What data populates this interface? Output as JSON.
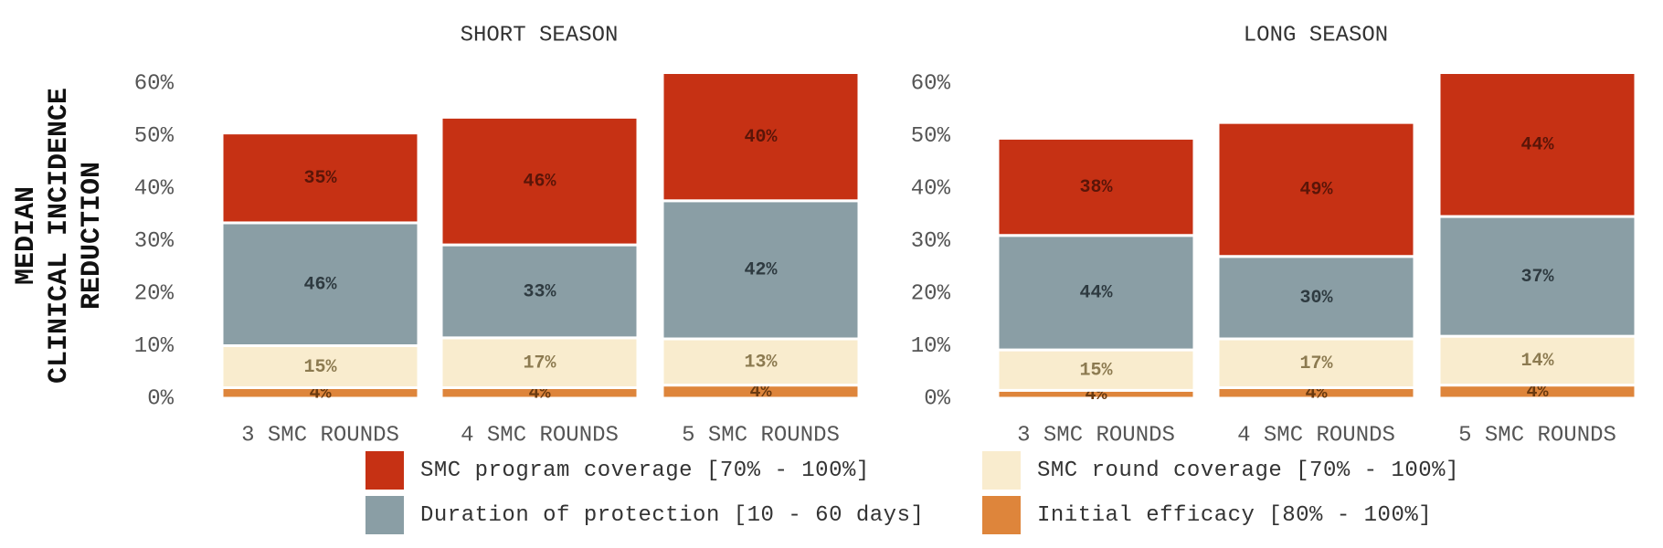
{
  "y_axis_title_lines": [
    "MEDIAN",
    "CLINICAL INCIDENCE",
    "REDUCTION"
  ],
  "colors": {
    "program": "#c63114",
    "duration": "#8a9ea5",
    "round": "#f9ecce",
    "efficacy": "#de853b",
    "segment_text_dark": "#5a1508",
    "segment_text_slate": "#2e3a40",
    "segment_text_round": "#8c7a50",
    "segment_text_efficacy": "#6a3a10"
  },
  "legend": [
    {
      "label": "SMC program coverage [70% - 100%]",
      "color": "#c63114"
    },
    {
      "label": "SMC round coverage [70% - 100%]",
      "color": "#f9ecce"
    },
    {
      "label": "Duration of protection [10 - 60 days]",
      "color": "#8a9ea5"
    },
    {
      "label": "Initial efficacy [80% - 100%]",
      "color": "#de853b"
    }
  ],
  "chart_data": [
    {
      "type": "bar",
      "stacked": true,
      "title": "SHORT SEASON",
      "ylabel": "MEDIAN CLINICAL INCIDENCE REDUCTION",
      "ylim": [
        0,
        62
      ],
      "yticks": [
        "0%",
        "10%",
        "20%",
        "30%",
        "40%",
        "50%",
        "60%"
      ],
      "categories": [
        "3 SMC ROUNDS",
        "4 SMC ROUNDS",
        "5 SMC ROUNDS"
      ],
      "totals": [
        50.5,
        53.5,
        62
      ],
      "series": [
        {
          "name": "Initial efficacy [80% - 100%]",
          "share_labels": [
            "4%",
            "4%",
            "4%"
          ],
          "values": [
            2,
            2,
            2.5
          ]
        },
        {
          "name": "SMC round coverage [70% - 100%]",
          "share_labels": [
            "15%",
            "17%",
            "13%"
          ],
          "values": [
            8,
            9.5,
            8.8
          ]
        },
        {
          "name": "Duration of protection [10 - 60 days]",
          "share_labels": [
            "46%",
            "33%",
            "42%"
          ],
          "values": [
            23.4,
            17.7,
            26.3
          ]
        },
        {
          "name": "SMC program coverage [70% - 100%]",
          "share_labels": [
            "35%",
            "46%",
            "40%"
          ],
          "values": [
            17.1,
            24.3,
            24.4
          ]
        }
      ]
    },
    {
      "type": "bar",
      "stacked": true,
      "title": "LONG SEASON",
      "ylim": [
        0,
        62
      ],
      "yticks": [
        "0%",
        "10%",
        "20%",
        "30%",
        "40%",
        "50%",
        "60%"
      ],
      "categories": [
        "3 SMC ROUNDS",
        "4 SMC ROUNDS",
        "5 SMC ROUNDS"
      ],
      "totals": [
        49.5,
        52.5,
        62
      ],
      "series": [
        {
          "name": "Initial efficacy [80% - 100%]",
          "share_labels": [
            "4%",
            "4%",
            "4%"
          ],
          "values": [
            1.5,
            2,
            2.5
          ]
        },
        {
          "name": "SMC round coverage [70% - 100%]",
          "share_labels": [
            "15%",
            "17%",
            "14%"
          ],
          "values": [
            7.7,
            9.3,
            9.3
          ]
        },
        {
          "name": "Duration of protection [10 - 60 days]",
          "share_labels": [
            "44%",
            "30%",
            "37%"
          ],
          "values": [
            21.8,
            15.7,
            22.8
          ]
        },
        {
          "name": "SMC program coverage [70% - 100%]",
          "share_labels": [
            "38%",
            "49%",
            "44%"
          ],
          "values": [
            18.5,
            25.5,
            27.4
          ]
        }
      ]
    }
  ]
}
